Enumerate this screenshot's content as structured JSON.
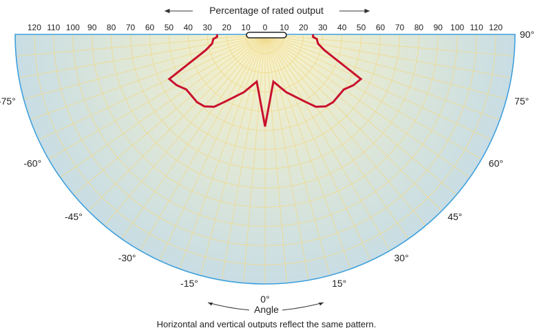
{
  "chart_data": {
    "type": "polar",
    "title": "",
    "top_axis_label": "Percentage of rated output",
    "bottom_axis_label": "Angle",
    "caption": "Horizontal and vertical outputs reflect the same pattern.",
    "top_ticks": [
      "120",
      "110",
      "100",
      "90",
      "80",
      "70",
      "60",
      "50",
      "40",
      "30",
      "20",
      "10",
      "0",
      "10",
      "20",
      "30",
      "40",
      "50",
      "60",
      "70",
      "80",
      "90",
      "100",
      "110",
      "120"
    ],
    "radial_range": [
      0,
      130
    ],
    "angle_range": [
      -90,
      90
    ],
    "angle_ticks": [
      {
        "angle": -90,
        "label": ""
      },
      {
        "angle": -75,
        "label": "-75°"
      },
      {
        "angle": -60,
        "label": "-60°"
      },
      {
        "angle": -45,
        "label": "-45°"
      },
      {
        "angle": -30,
        "label": "-30°"
      },
      {
        "angle": -15,
        "label": "-15°"
      },
      {
        "angle": 0,
        "label": "0°"
      },
      {
        "angle": 15,
        "label": "15°"
      },
      {
        "angle": 30,
        "label": "30°"
      },
      {
        "angle": 45,
        "label": "45°"
      },
      {
        "angle": 60,
        "label": "60°"
      },
      {
        "angle": 75,
        "label": "75°"
      },
      {
        "angle": 90,
        "label": "90°"
      }
    ],
    "series": [
      {
        "color": "#c8102e",
        "points": [
          {
            "angle": -90,
            "value": 25
          },
          {
            "angle": -87,
            "value": 25
          },
          {
            "angle": -85,
            "value": 27
          },
          {
            "angle": -80,
            "value": 28
          },
          {
            "angle": -75,
            "value": 32
          },
          {
            "angle": -65,
            "value": 55
          },
          {
            "angle": -60,
            "value": 53
          },
          {
            "angle": -55,
            "value": 50
          },
          {
            "angle": -45,
            "value": 50
          },
          {
            "angle": -40,
            "value": 49
          },
          {
            "angle": -35,
            "value": 46
          },
          {
            "angle": -30,
            "value": 40
          },
          {
            "angle": -20,
            "value": 32
          },
          {
            "angle": -10,
            "value": 25
          },
          {
            "angle": 0,
            "value": 48
          },
          {
            "angle": 10,
            "value": 25
          },
          {
            "angle": 20,
            "value": 32
          },
          {
            "angle": 30,
            "value": 40
          },
          {
            "angle": 35,
            "value": 46
          },
          {
            "angle": 40,
            "value": 49
          },
          {
            "angle": 45,
            "value": 50
          },
          {
            "angle": 55,
            "value": 50
          },
          {
            "angle": 60,
            "value": 53
          },
          {
            "angle": 65,
            "value": 55
          },
          {
            "angle": 75,
            "value": 32
          },
          {
            "angle": 80,
            "value": 28
          },
          {
            "angle": 85,
            "value": 27
          },
          {
            "angle": 87,
            "value": 25
          },
          {
            "angle": 90,
            "value": 25
          }
        ]
      }
    ],
    "colors": {
      "fill_center": "#fbf3c6",
      "fill_edge": "#c8dde4",
      "grid": "#f0d98a",
      "outline": "#3d9fdc",
      "curve": "#c8102e"
    },
    "grid": true
  }
}
